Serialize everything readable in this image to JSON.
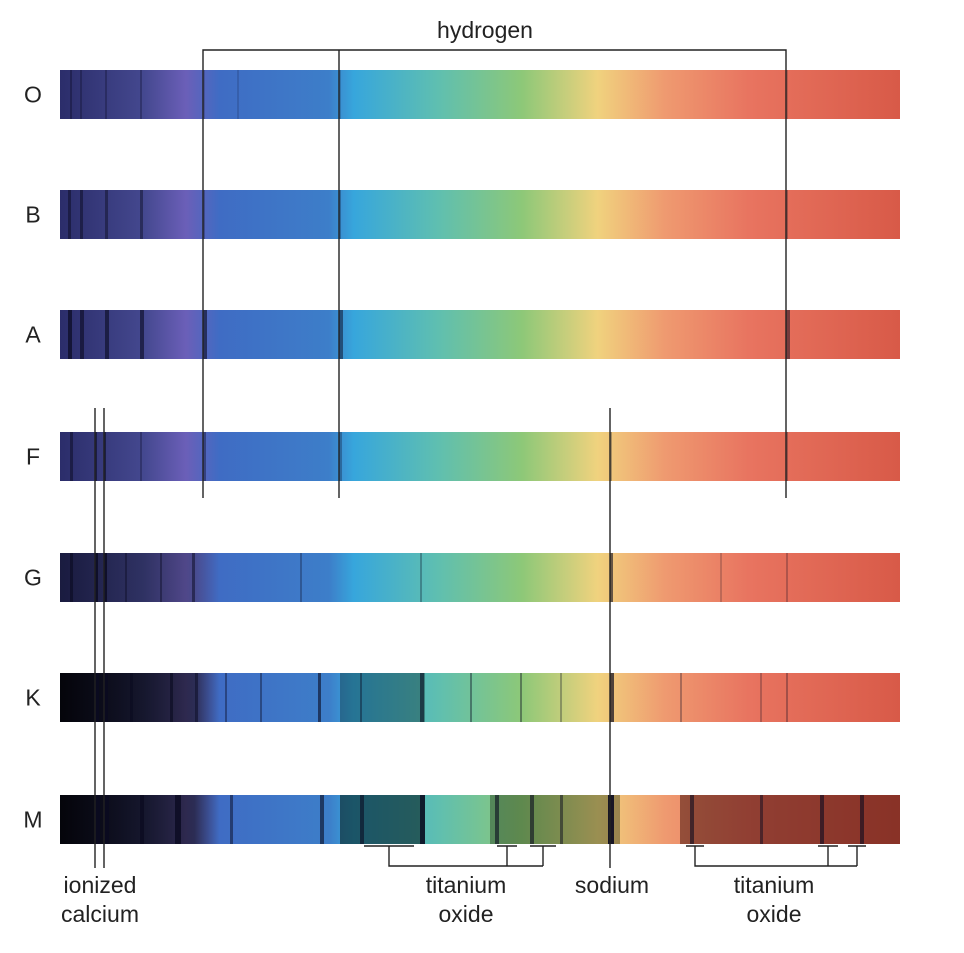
{
  "spectral_classes": [
    "O",
    "B",
    "A",
    "F",
    "G",
    "K",
    "M"
  ],
  "line_labels": {
    "hydrogen": "hydrogen",
    "calcium": [
      "ionized",
      "calcium"
    ],
    "titanium_oxide_left": [
      "titanium",
      "oxide"
    ],
    "sodium": "sodium",
    "titanium_oxide_right": [
      "titanium",
      "oxide"
    ]
  }
}
